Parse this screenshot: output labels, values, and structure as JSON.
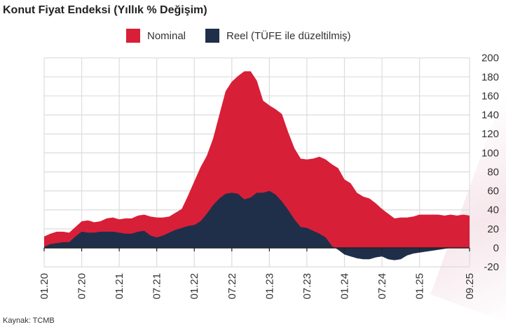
{
  "chart_data": {
    "type": "area",
    "title": "Konut Fiyat Endeksi (Yıllık % Değişim)",
    "xlabel": "",
    "ylabel": "",
    "ylim": [
      -20,
      200
    ],
    "yticks": [
      -20,
      0,
      20,
      40,
      60,
      80,
      100,
      120,
      140,
      160,
      180,
      200
    ],
    "ytick_labels": [
      "-20",
      "0",
      "20",
      "40",
      "60",
      "80",
      "100",
      "120",
      "140",
      "160",
      "180",
      "200"
    ],
    "x_start": "01.20",
    "x_end": "09.25",
    "xtick_labels": [
      "01.20",
      "07.20",
      "01.21",
      "07.21",
      "01.22",
      "07.22",
      "01.23",
      "07.23",
      "01.24",
      "07.24",
      "01.25",
      "09.25"
    ],
    "xtick_month_index": [
      0,
      6,
      12,
      18,
      24,
      30,
      36,
      42,
      48,
      54,
      60,
      68
    ],
    "grid": true,
    "legend_position": "top-center",
    "series": [
      {
        "name": "Nominal",
        "color": "#d81f38",
        "values": [
          12,
          15,
          17,
          17,
          16,
          22,
          28,
          29,
          27,
          28,
          31,
          32,
          30,
          31,
          31,
          34,
          35,
          33,
          32,
          32,
          33,
          37,
          41,
          55,
          70,
          85,
          97,
          115,
          140,
          165,
          175,
          181,
          186,
          186,
          176,
          155,
          150,
          146,
          141,
          122,
          105,
          94,
          93,
          94,
          96,
          93,
          88,
          84,
          72,
          68,
          58,
          54,
          52,
          47,
          41,
          36,
          31,
          32,
          32,
          33,
          35,
          35,
          35,
          35,
          34,
          35,
          34,
          35,
          34
        ]
      },
      {
        "name": "Reel (TÜFE ile düzeltilmiş)",
        "color": "#1f2f4a",
        "values": [
          1,
          4,
          5,
          6,
          6,
          12,
          17,
          16,
          16,
          17,
          17,
          17,
          16,
          15,
          15,
          17,
          18,
          13,
          11,
          13,
          16,
          19,
          21,
          23,
          24,
          28,
          36,
          45,
          52,
          57,
          58,
          57,
          51,
          53,
          58,
          58,
          60,
          56,
          49,
          40,
          30,
          22,
          21,
          18,
          15,
          11,
          2,
          -2,
          -7,
          -9,
          -11,
          -12,
          -12,
          -10,
          -9,
          -12,
          -13,
          -12,
          -8,
          -6,
          -5,
          -4,
          -3,
          -2,
          -1,
          0,
          0,
          0,
          0
        ]
      }
    ]
  },
  "source": "Kaynak: TCMB"
}
